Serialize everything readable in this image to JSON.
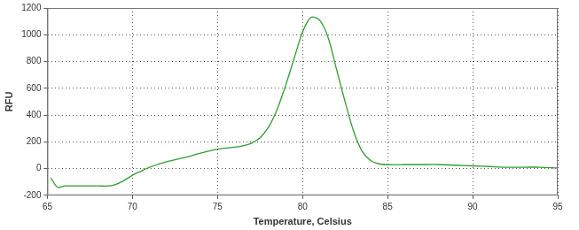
{
  "chart_data": {
    "type": "line",
    "x_label": "Temperature, Celsius",
    "y_label": "RFU",
    "x": [
      65.2,
      65.6,
      66,
      67,
      68,
      68.6,
      69,
      69.5,
      70,
      70.5,
      71,
      72,
      73,
      74,
      75,
      76,
      76.5,
      77,
      77.5,
      78,
      78.5,
      79,
      79.5,
      80,
      80.5,
      81,
      81.5,
      82,
      82.5,
      83,
      83.5,
      84,
      84.5,
      85,
      86,
      87,
      88,
      89,
      90,
      91,
      92,
      93,
      94,
      95
    ],
    "values": [
      -70,
      -140,
      -130,
      -130,
      -130,
      -130,
      -120,
      -90,
      -50,
      -20,
      10,
      50,
      80,
      115,
      145,
      160,
      170,
      190,
      230,
      310,
      440,
      620,
      820,
      1020,
      1130,
      1110,
      980,
      740,
      500,
      280,
      130,
      60,
      35,
      30,
      30,
      30,
      30,
      25,
      20,
      15,
      10,
      10,
      10,
      5
    ],
    "color": "#2e9e2e",
    "marker": "none",
    "line_style": "solid",
    "xlim": [
      65,
      95
    ],
    "xticks": [
      65,
      70,
      75,
      80,
      85,
      90,
      95
    ],
    "ylim": [
      -200,
      1200
    ],
    "yticks": [
      -200,
      0,
      200,
      400,
      600,
      800,
      1000,
      1200
    ],
    "grid": true
  }
}
